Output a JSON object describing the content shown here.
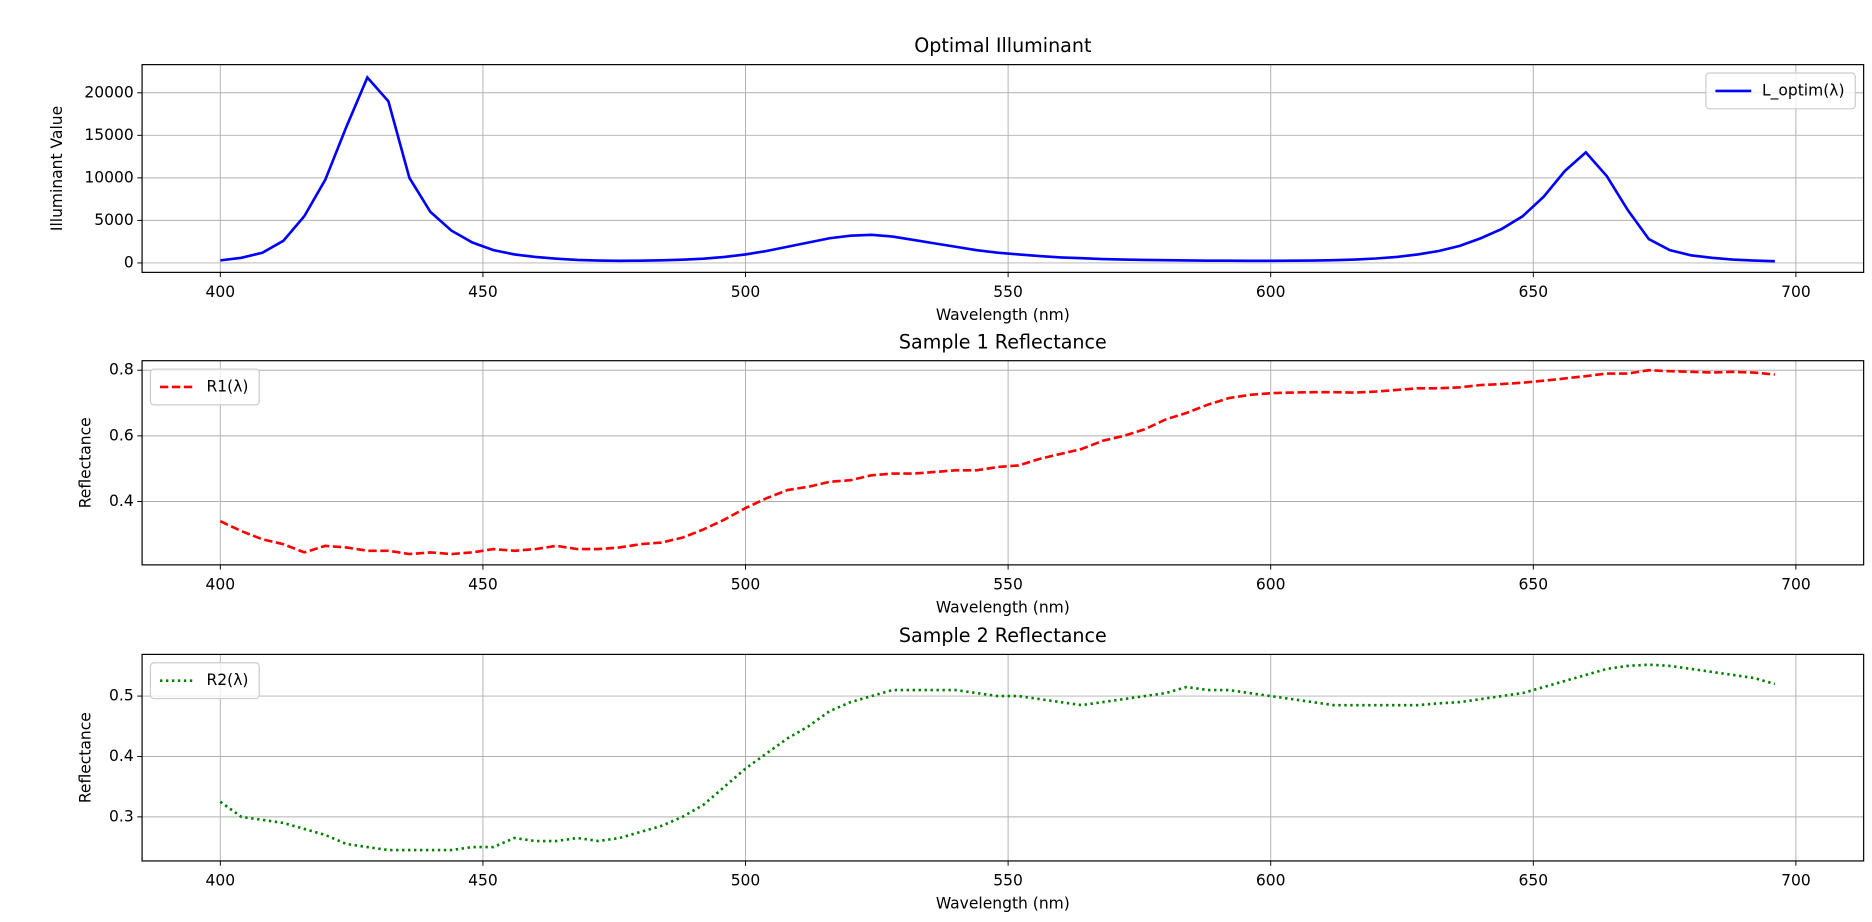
{
  "chart_data": [
    {
      "type": "line",
      "title": "Optimal Illuminant",
      "x_label": "Wavelength (nm)",
      "y_label": "Illuminant Value",
      "x": [
        400,
        404,
        408,
        412,
        416,
        420,
        424,
        428,
        432,
        436,
        440,
        444,
        448,
        452,
        456,
        460,
        464,
        468,
        472,
        476,
        480,
        484,
        488,
        492,
        496,
        500,
        504,
        508,
        512,
        516,
        520,
        524,
        528,
        532,
        536,
        540,
        544,
        548,
        552,
        556,
        560,
        564,
        568,
        572,
        576,
        580,
        584,
        588,
        592,
        596,
        600,
        604,
        608,
        612,
        616,
        620,
        624,
        628,
        632,
        636,
        640,
        644,
        648,
        652,
        656,
        660,
        664,
        668,
        672,
        676,
        680,
        684,
        688,
        692,
        696
      ],
      "series": [
        {
          "name": "L_optim(λ)",
          "color": "#0000ff",
          "linestyle": "solid",
          "values": [
            300,
            600,
            1200,
            2600,
            5500,
            9800,
            16000,
            21800,
            19000,
            10000,
            6000,
            3800,
            2400,
            1500,
            1000,
            700,
            500,
            350,
            280,
            250,
            260,
            300,
            380,
            500,
            700,
            1000,
            1400,
            1900,
            2400,
            2900,
            3200,
            3300,
            3100,
            2700,
            2300,
            1900,
            1500,
            1200,
            1000,
            800,
            650,
            550,
            460,
            400,
            350,
            320,
            290,
            270,
            260,
            250,
            250,
            260,
            280,
            320,
            400,
            520,
            700,
            1000,
            1400,
            2000,
            2900,
            4000,
            5500,
            7800,
            10800,
            13000,
            10200,
            6200,
            2800,
            1500,
            900,
            600,
            400,
            280,
            200
          ]
        }
      ],
      "xlim": [
        385.1,
        712.9
      ],
      "ylim": [
        -1110,
        23310
      ],
      "xticks": [
        400,
        450,
        500,
        550,
        600,
        650,
        700
      ],
      "yticks": [
        0,
        5000,
        10000,
        15000,
        20000
      ],
      "grid": true,
      "legend": "upper right"
    },
    {
      "type": "line",
      "title": "Sample 1 Reflectance",
      "x_label": "Wavelength (nm)",
      "y_label": "Reflectance",
      "x": [
        400,
        404,
        408,
        412,
        416,
        420,
        424,
        428,
        432,
        436,
        440,
        444,
        448,
        452,
        456,
        460,
        464,
        468,
        472,
        476,
        480,
        484,
        488,
        492,
        496,
        500,
        504,
        508,
        512,
        516,
        520,
        524,
        528,
        532,
        536,
        540,
        544,
        548,
        552,
        556,
        560,
        564,
        568,
        572,
        576,
        580,
        584,
        588,
        592,
        596,
        600,
        604,
        608,
        612,
        616,
        620,
        624,
        628,
        632,
        636,
        640,
        644,
        648,
        652,
        656,
        660,
        664,
        668,
        672,
        676,
        680,
        684,
        688,
        692,
        696
      ],
      "series": [
        {
          "name": "R1(λ)",
          "color": "#ff0000",
          "linestyle": "dashed",
          "values": [
            0.34,
            0.31,
            0.285,
            0.27,
            0.245,
            0.265,
            0.26,
            0.25,
            0.25,
            0.24,
            0.245,
            0.24,
            0.245,
            0.255,
            0.25,
            0.255,
            0.265,
            0.255,
            0.255,
            0.26,
            0.27,
            0.275,
            0.29,
            0.315,
            0.345,
            0.38,
            0.41,
            0.435,
            0.445,
            0.46,
            0.465,
            0.48,
            0.485,
            0.485,
            0.49,
            0.495,
            0.495,
            0.505,
            0.51,
            0.53,
            0.545,
            0.56,
            0.585,
            0.6,
            0.62,
            0.65,
            0.67,
            0.695,
            0.715,
            0.725,
            0.73,
            0.732,
            0.733,
            0.733,
            0.732,
            0.735,
            0.74,
            0.745,
            0.745,
            0.748,
            0.755,
            0.758,
            0.762,
            0.768,
            0.775,
            0.782,
            0.79,
            0.79,
            0.8,
            0.797,
            0.795,
            0.793,
            0.795,
            0.793,
            0.787
          ]
        }
      ],
      "xlim": [
        385.1,
        712.9
      ],
      "ylim": [
        0.207,
        0.829
      ],
      "xticks": [
        400,
        450,
        500,
        550,
        600,
        650,
        700
      ],
      "yticks": [
        0.4,
        0.6,
        0.8
      ],
      "grid": true,
      "legend": "upper left"
    },
    {
      "type": "line",
      "title": "Sample 2 Reflectance",
      "x_label": "Wavelength (nm)",
      "y_label": "Reflectance",
      "x": [
        400,
        404,
        408,
        412,
        416,
        420,
        424,
        428,
        432,
        436,
        440,
        444,
        448,
        452,
        456,
        460,
        464,
        468,
        472,
        476,
        480,
        484,
        488,
        492,
        496,
        500,
        504,
        508,
        512,
        516,
        520,
        524,
        528,
        532,
        536,
        540,
        544,
        548,
        552,
        556,
        560,
        564,
        568,
        572,
        576,
        580,
        584,
        588,
        592,
        596,
        600,
        604,
        608,
        612,
        616,
        620,
        624,
        628,
        632,
        636,
        640,
        644,
        648,
        652,
        656,
        660,
        664,
        668,
        672,
        676,
        680,
        684,
        688,
        692,
        696
      ],
      "series": [
        {
          "name": "R2(λ)",
          "color": "#008000",
          "linestyle": "dotted",
          "values": [
            0.325,
            0.3,
            0.295,
            0.29,
            0.28,
            0.27,
            0.255,
            0.25,
            0.245,
            0.245,
            0.245,
            0.245,
            0.25,
            0.25,
            0.265,
            0.26,
            0.26,
            0.265,
            0.26,
            0.265,
            0.275,
            0.285,
            0.3,
            0.32,
            0.35,
            0.38,
            0.405,
            0.43,
            0.45,
            0.475,
            0.49,
            0.5,
            0.51,
            0.51,
            0.51,
            0.51,
            0.505,
            0.5,
            0.5,
            0.495,
            0.49,
            0.485,
            0.49,
            0.495,
            0.5,
            0.505,
            0.515,
            0.51,
            0.51,
            0.505,
            0.5,
            0.495,
            0.49,
            0.485,
            0.485,
            0.485,
            0.485,
            0.485,
            0.488,
            0.49,
            0.495,
            0.5,
            0.505,
            0.515,
            0.525,
            0.535,
            0.545,
            0.55,
            0.552,
            0.55,
            0.545,
            0.54,
            0.535,
            0.53,
            0.52
          ]
        }
      ],
      "xlim": [
        385.1,
        712.9
      ],
      "ylim": [
        0.227,
        0.569
      ],
      "xticks": [
        400,
        450,
        500,
        550,
        600,
        650,
        700
      ],
      "yticks": [
        0.3,
        0.4,
        0.5
      ],
      "grid": true,
      "legend": "upper left"
    }
  ]
}
